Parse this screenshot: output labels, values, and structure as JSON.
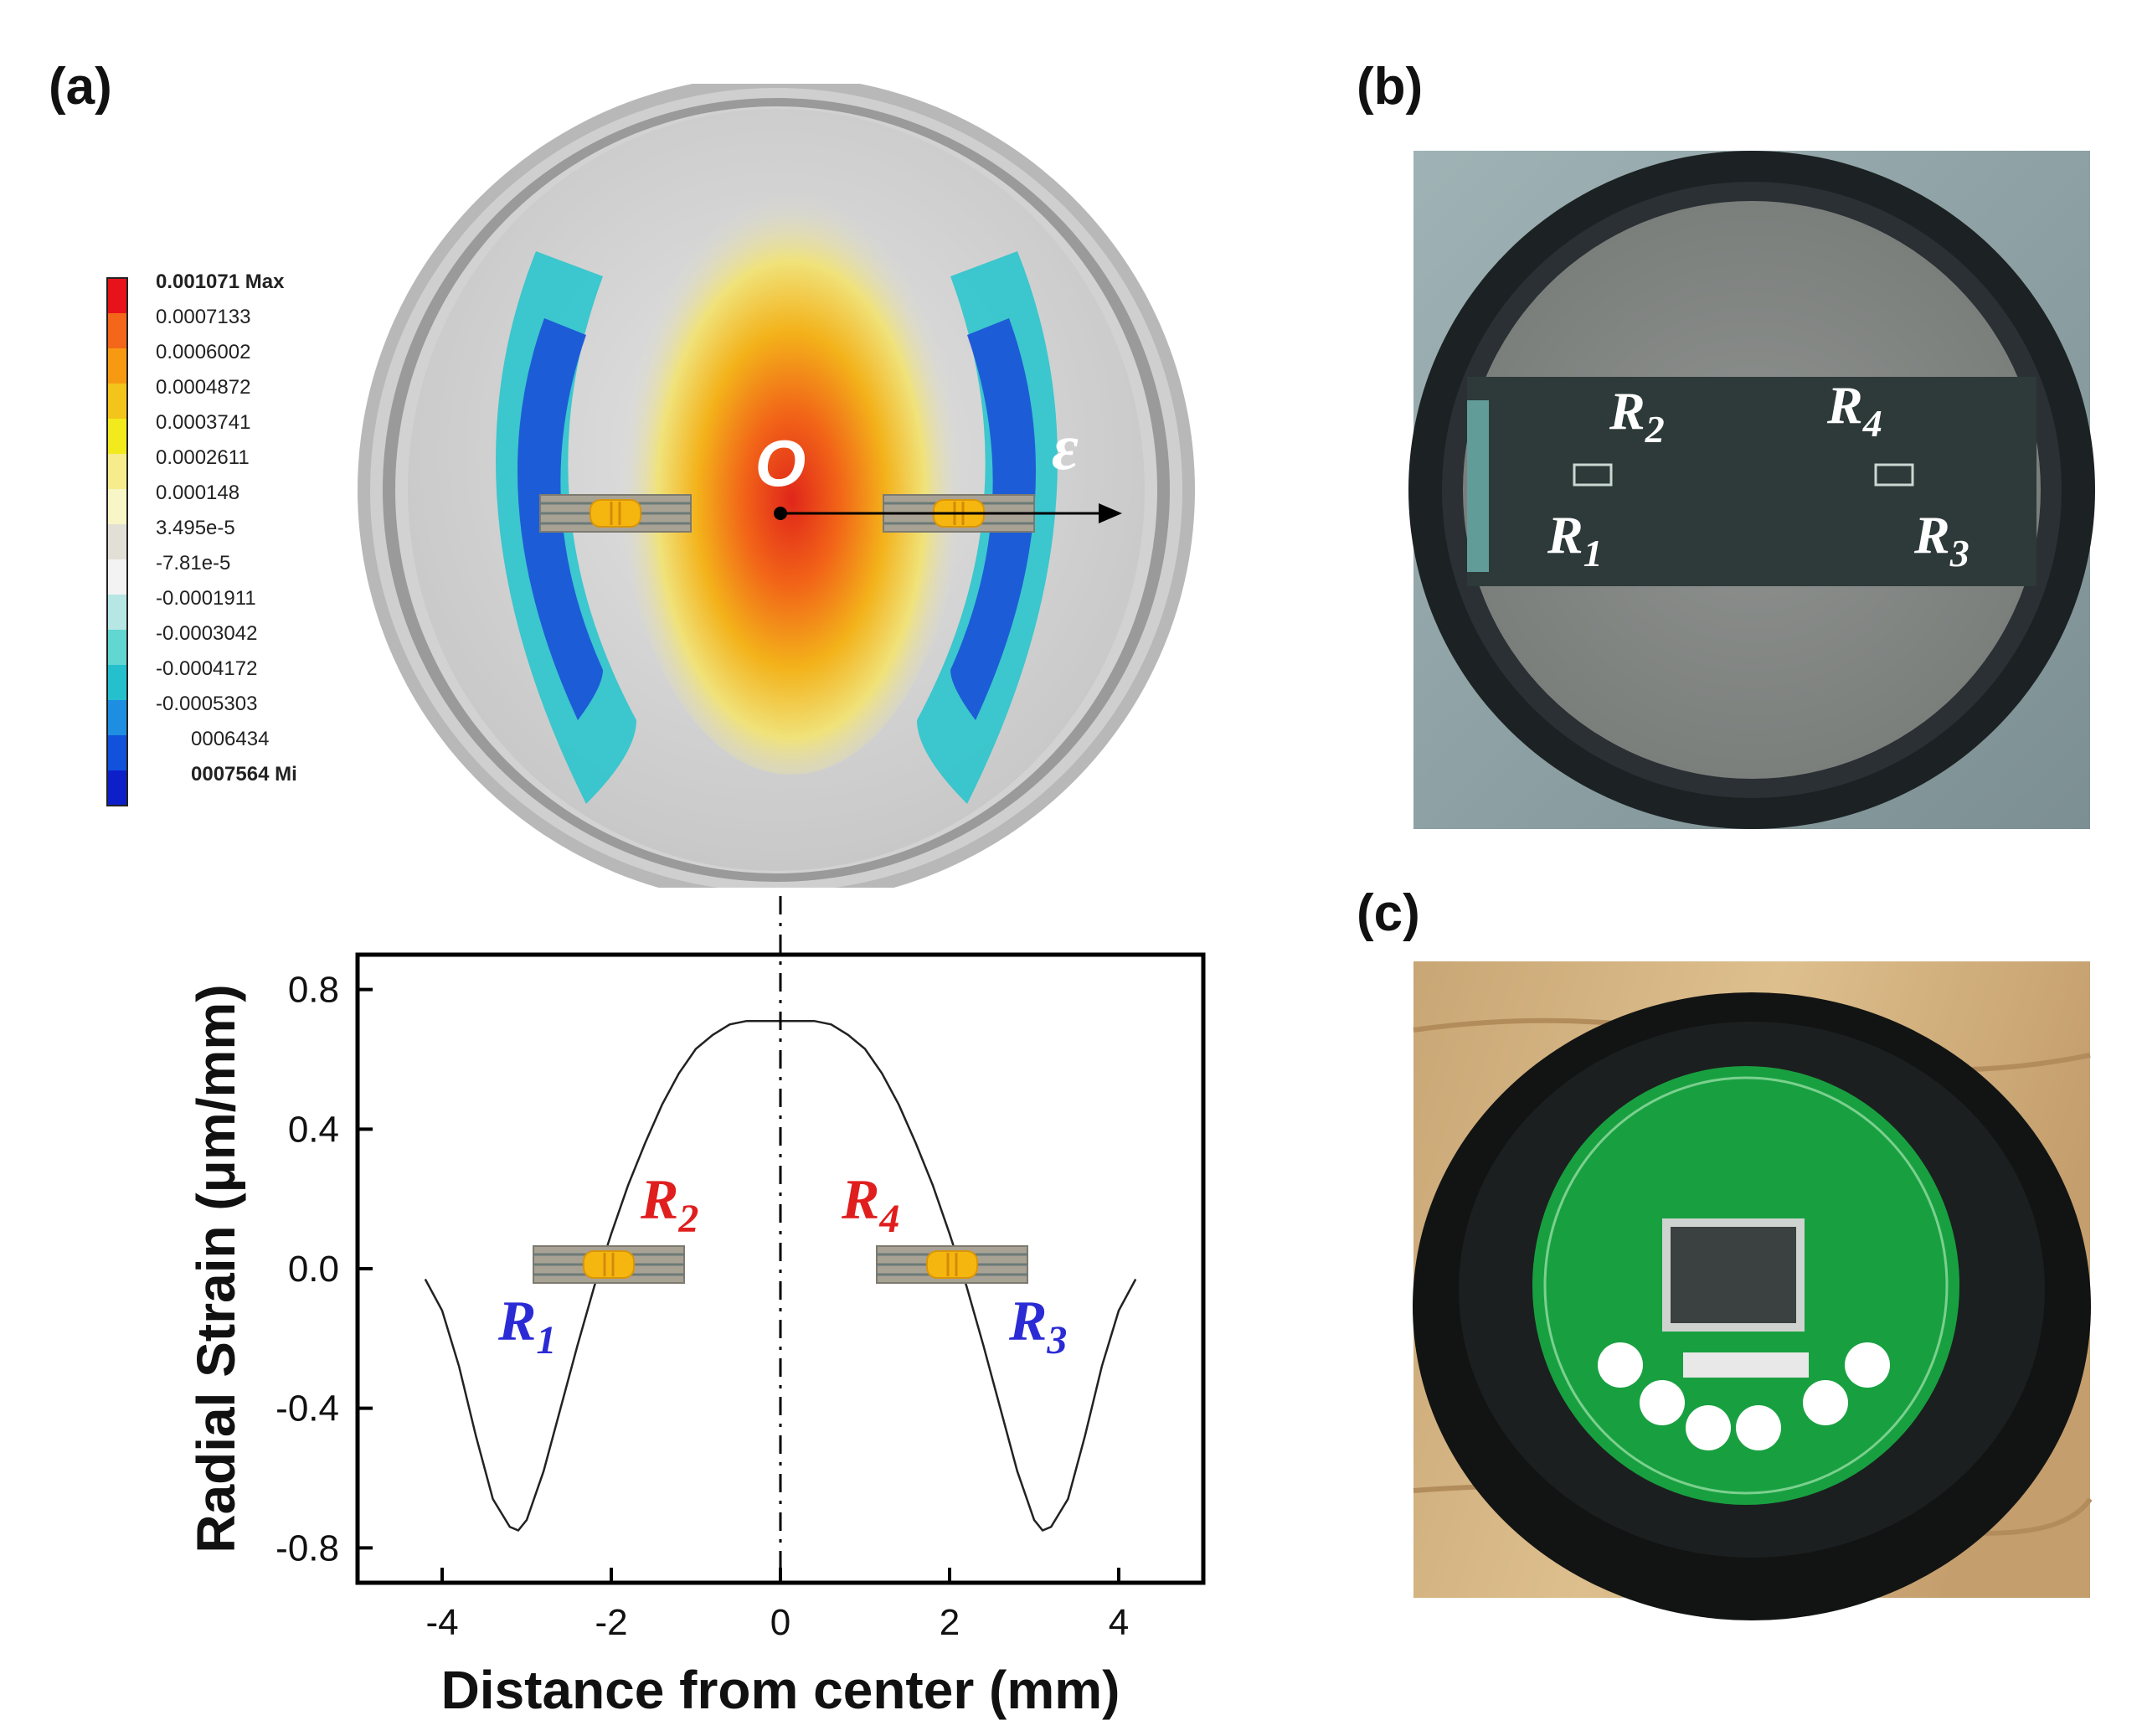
{
  "panels": {
    "a": "(a)",
    "b": "(b)",
    "c": "(c)"
  },
  "legend": {
    "values": [
      "0.001071 Max",
      "0.0007133",
      "0.0006002",
      "0.0004872",
      "0.0003741",
      "0.0002611",
      "0.000148",
      "3.495e-5",
      "-7.81e-5",
      "-0.0001911",
      "-0.0003042",
      "-0.0004172",
      "-0.0005303",
      "0006434",
      "0007564 Mi"
    ],
    "colors": [
      "#e8121b",
      "#f4661a",
      "#f79a12",
      "#f3c51a",
      "#f3ea1e",
      "#f6ec8c",
      "#f8f5c6",
      "#e2e0d6",
      "#f3f3f3",
      "#b6e7e4",
      "#62d6d0",
      "#25c0cd",
      "#1d8ee0",
      "#1152dc",
      "#0d1fc9"
    ]
  },
  "fea": {
    "origin_label": "O",
    "strain_label": "ε"
  },
  "chart_data": {
    "type": "line",
    "xlabel": "Distance from center (mm)",
    "ylabel": "Radial Strain (μm/mm)",
    "xlim": [
      -5,
      5
    ],
    "ylim": [
      -0.9,
      0.9
    ],
    "xticks": [
      -4,
      -2,
      0,
      2,
      4
    ],
    "yticks": [
      -0.8,
      -0.4,
      0.0,
      0.4,
      0.8
    ],
    "ytick_labels": [
      "-0.8",
      "-0.4",
      "0.0",
      "0.4",
      "0.8"
    ],
    "x": [
      -4.2,
      -4.0,
      -3.8,
      -3.6,
      -3.4,
      -3.2,
      -3.1,
      -3.0,
      -2.8,
      -2.6,
      -2.4,
      -2.2,
      -2.0,
      -1.8,
      -1.6,
      -1.4,
      -1.2,
      -1.0,
      -0.8,
      -0.6,
      -0.4,
      -0.2,
      0.0,
      0.2,
      0.4,
      0.6,
      0.8,
      1.0,
      1.2,
      1.4,
      1.6,
      1.8,
      2.0,
      2.2,
      2.4,
      2.6,
      2.8,
      3.0,
      3.1,
      3.2,
      3.4,
      3.6,
      3.8,
      4.0,
      4.2
    ],
    "y": [
      -0.03,
      -0.12,
      -0.28,
      -0.48,
      -0.66,
      -0.74,
      -0.75,
      -0.72,
      -0.58,
      -0.4,
      -0.22,
      -0.05,
      0.1,
      0.24,
      0.36,
      0.47,
      0.56,
      0.63,
      0.67,
      0.7,
      0.71,
      0.71,
      0.71,
      0.71,
      0.71,
      0.7,
      0.67,
      0.63,
      0.56,
      0.47,
      0.36,
      0.24,
      0.1,
      -0.05,
      -0.22,
      -0.4,
      -0.58,
      -0.72,
      -0.75,
      -0.74,
      -0.66,
      -0.48,
      -0.28,
      -0.12,
      -0.03
    ],
    "annotations": {
      "R1": {
        "main": "R",
        "sub": "1",
        "color": "#2b2bd6"
      },
      "R2": {
        "main": "R",
        "sub": "2",
        "color": "#e01e1e"
      },
      "R3": {
        "main": "R",
        "sub": "3",
        "color": "#2b2bd6"
      },
      "R4": {
        "main": "R",
        "sub": "4",
        "color": "#e01e1e"
      }
    }
  },
  "photo_b": {
    "labels": {
      "R1": {
        "main": "R",
        "sub": "1"
      },
      "R2": {
        "main": "R",
        "sub": "2"
      },
      "R3": {
        "main": "R",
        "sub": "3"
      },
      "R4": {
        "main": "R",
        "sub": "4"
      }
    }
  }
}
